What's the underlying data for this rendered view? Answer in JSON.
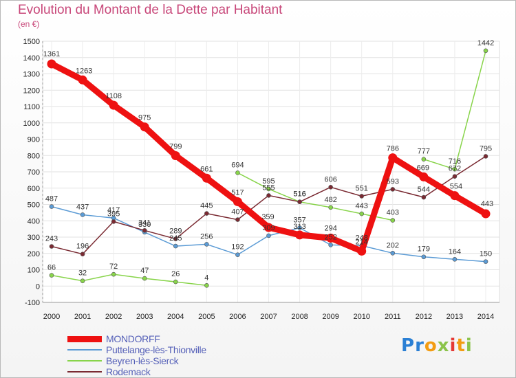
{
  "chart_data": {
    "type": "line",
    "title": "Evolution du Montant de la Dette par Habitant",
    "subtitle": "(en €)",
    "x": [
      "2000",
      "2001",
      "2002",
      "2003",
      "2004",
      "2005",
      "2006",
      "2007",
      "2008",
      "2009",
      "2010",
      "2011",
      "2012",
      "2013",
      "2014"
    ],
    "ylim": [
      -100,
      1500
    ],
    "yticks": [
      "-100",
      "0",
      "100",
      "200",
      "300",
      "400",
      "500",
      "600",
      "700",
      "800",
      "900",
      "1000",
      "1100",
      "1200",
      "1300",
      "1400",
      "1500"
    ],
    "grid": true,
    "legend_position": "bottom-left",
    "series": [
      {
        "name": "MONDORFF",
        "color": "#ee1111",
        "values": [
          1361,
          1263,
          1108,
          975,
          799,
          661,
          517,
          359,
          313,
          294,
          214,
          786,
          669,
          554,
          443
        ],
        "labels": [
          "1361",
          "1263",
          "1108",
          "975",
          "799",
          "661",
          "517",
          "359",
          "313",
          "294",
          "214",
          "786",
          "669",
          "554",
          "443"
        ]
      },
      {
        "name": "Puttelange-lès-Thionville",
        "color": "#5b9bd5",
        "values": [
          487,
          437,
          417,
          330,
          245,
          256,
          192,
          309,
          357,
          252,
          248,
          202,
          179,
          164,
          150
        ],
        "labels": [
          "487",
          "437",
          "417",
          "330",
          "245",
          "256",
          "192",
          "309",
          "357",
          "252",
          "248",
          "202",
          "179",
          "164",
          "150"
        ]
      },
      {
        "name": "Beyren-lès-Sierck",
        "color": "#88d44a",
        "segments": [
          [
            0,
            5
          ],
          [
            6,
            11
          ],
          [
            12,
            14
          ]
        ],
        "values": [
          66,
          32,
          72,
          47,
          26,
          4,
          694,
          595,
          516,
          482,
          443,
          403,
          777,
          716,
          1442
        ],
        "labels": [
          "66",
          "32",
          "72",
          "47",
          "26",
          "4",
          "694",
          "595",
          "516",
          "482",
          "443",
          "403",
          "777",
          "716",
          "1442"
        ]
      },
      {
        "name": "Rodemack",
        "color": "#7a2a32",
        "values": [
          243,
          196,
          395,
          341,
          289,
          445,
          407,
          555,
          516,
          606,
          551,
          593,
          544,
          672,
          795
        ],
        "labels": [
          "243",
          "196",
          "395",
          "341",
          "289",
          "445",
          "407",
          "555",
          "516",
          "606",
          "551",
          "593",
          "544",
          "672",
          "795"
        ]
      }
    ]
  },
  "brand": {
    "logo": [
      "P",
      "r",
      "o",
      "x",
      "i",
      "t",
      "i"
    ],
    "logo_colors": [
      "#2a7fd4",
      "#2a7fd4",
      "#f39c12",
      "#8bc34a",
      "#e53935",
      "#f39c12",
      "#8bc34a"
    ]
  }
}
